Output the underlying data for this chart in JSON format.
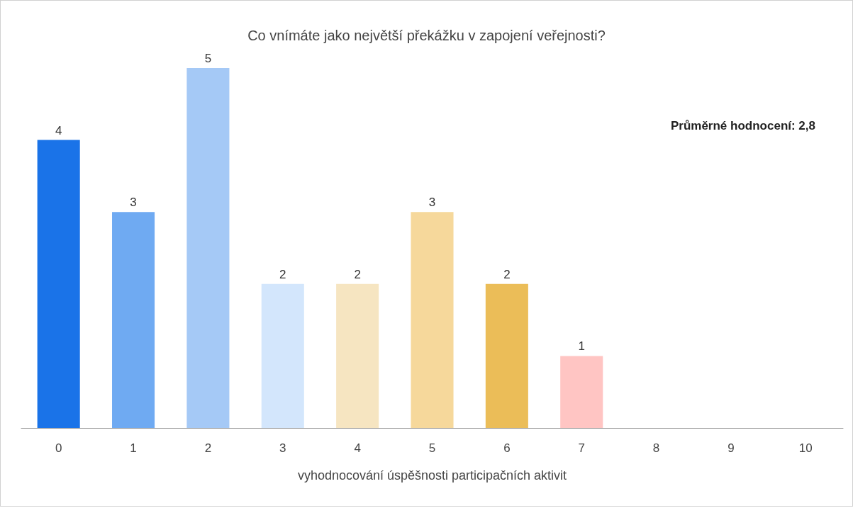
{
  "chart_data": {
    "type": "bar",
    "title": "Co vnímáte jako největší překážku v zapojení veřejnosti?",
    "xlabel": "vyhodnocování úspěšnosti participačních aktivit",
    "categories": [
      "0",
      "1",
      "2",
      "3",
      "4",
      "5",
      "6",
      "7",
      "8",
      "9",
      "10"
    ],
    "values": [
      4,
      3,
      5,
      2,
      2,
      3,
      2,
      1,
      0,
      0,
      0
    ],
    "value_labels": [
      "4",
      "3",
      "5",
      "2",
      "2",
      "3",
      "2",
      "1",
      null,
      null,
      null
    ],
    "colors": [
      "#1a73e8",
      "#6faaf2",
      "#a5c9f6",
      "#d3e6fc",
      "#f6e5c1",
      "#f6d89b",
      "#ebbd58",
      "#ffc5c3",
      "#cccccc",
      "#cccccc",
      "#cccccc"
    ],
    "annotations": [
      "Průměrné hodnocení: 2,8"
    ],
    "grid": false
  }
}
